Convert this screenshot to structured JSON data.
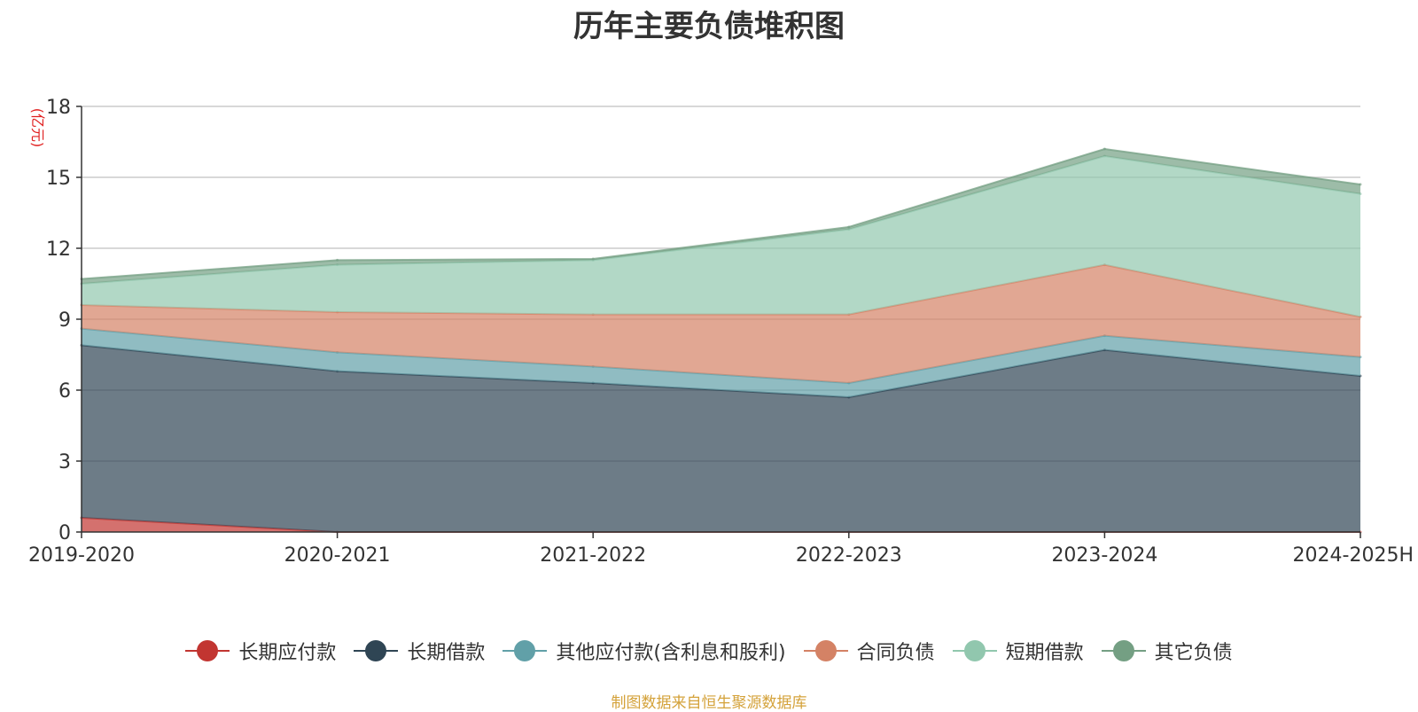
{
  "chart_data": {
    "type": "area",
    "stacked": true,
    "title": "历年主要负债堆积图",
    "ylabel": "(亿元)",
    "xlabel": "",
    "categories": [
      "2019-2020",
      "2020-2021",
      "2021-2022",
      "2022-2023",
      "2023-2024",
      "2024-2025H"
    ],
    "ylim": [
      0,
      18
    ],
    "yticks": [
      0,
      3,
      6,
      9,
      12,
      15,
      18
    ],
    "grid": true,
    "legend_position": "bottom",
    "series": [
      {
        "name": "长期应付款",
        "color": "#c23531",
        "values": [
          0.6,
          0.0,
          0.0,
          0.0,
          0.0,
          0.0
        ]
      },
      {
        "name": "长期借款",
        "color": "#2f4554",
        "values": [
          7.3,
          6.8,
          6.3,
          5.7,
          7.7,
          6.6
        ]
      },
      {
        "name": "其他应付款(含利息和股利)",
        "color": "#61a0a8",
        "values": [
          0.7,
          0.8,
          0.7,
          0.6,
          0.6,
          0.8
        ]
      },
      {
        "name": "合同负债",
        "color": "#d48265",
        "values": [
          1.0,
          1.7,
          2.2,
          2.9,
          3.0,
          1.7
        ]
      },
      {
        "name": "短期借款",
        "color": "#91c7ae",
        "values": [
          0.9,
          2.0,
          2.3,
          3.6,
          4.6,
          5.2
        ]
      },
      {
        "name": "其它负债",
        "color": "#749f83",
        "values": [
          0.2,
          0.2,
          0.05,
          0.1,
          0.3,
          0.4
        ]
      }
    ]
  },
  "footer": {
    "source": "制图数据来自恒生聚源数据库"
  }
}
